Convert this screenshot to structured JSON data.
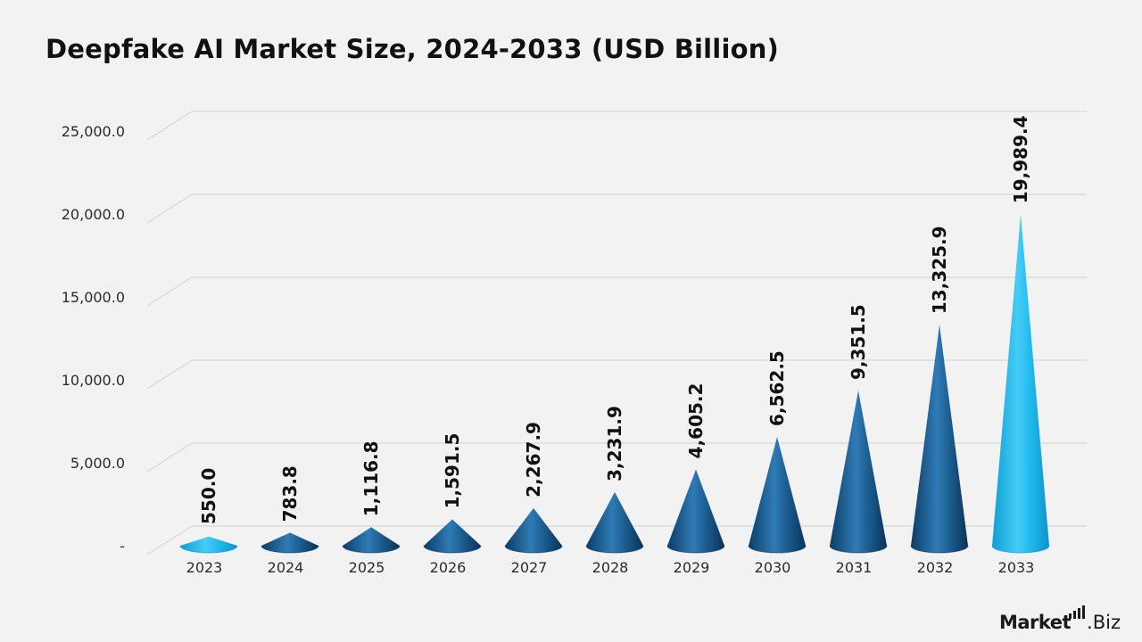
{
  "chart_data": {
    "type": "bar",
    "title": "Deepfake AI Market Size, 2024-2033 (USD Billion)",
    "categories": [
      "2023",
      "2024",
      "2025",
      "2026",
      "2027",
      "2028",
      "2029",
      "2030",
      "2031",
      "2032",
      "2033"
    ],
    "values": [
      550.0,
      783.8,
      1116.8,
      1591.5,
      2267.9,
      3231.9,
      4605.2,
      6562.5,
      9351.5,
      13325.9,
      19989.4
    ],
    "data_labels": [
      "550.0",
      "783.8",
      "1,116.8",
      "1,591.5",
      "2,267.9",
      "3,231.9",
      "4,605.2",
      "6,562.5",
      "9,351.5",
      "13,325.9",
      "19,989.4"
    ],
    "ylim": [
      0,
      25000
    ],
    "yticks": [
      0,
      5000,
      10000,
      15000,
      20000,
      25000
    ],
    "ytick_labels": [
      "-",
      "5,000.0",
      "10,000.0",
      "15,000.0",
      "20,000.0",
      "25,000.0"
    ],
    "xlabel": "",
    "ylabel": "",
    "grid": true,
    "legend": "none",
    "mark_shape": "cone",
    "colors": {
      "highlight": "#1fb6ea",
      "base": "#1a5a8c",
      "dark": "#0b3a60",
      "grid": "#d0d0d0"
    }
  },
  "brand": {
    "name_bold": "Market",
    "name_light": ".Biz"
  }
}
